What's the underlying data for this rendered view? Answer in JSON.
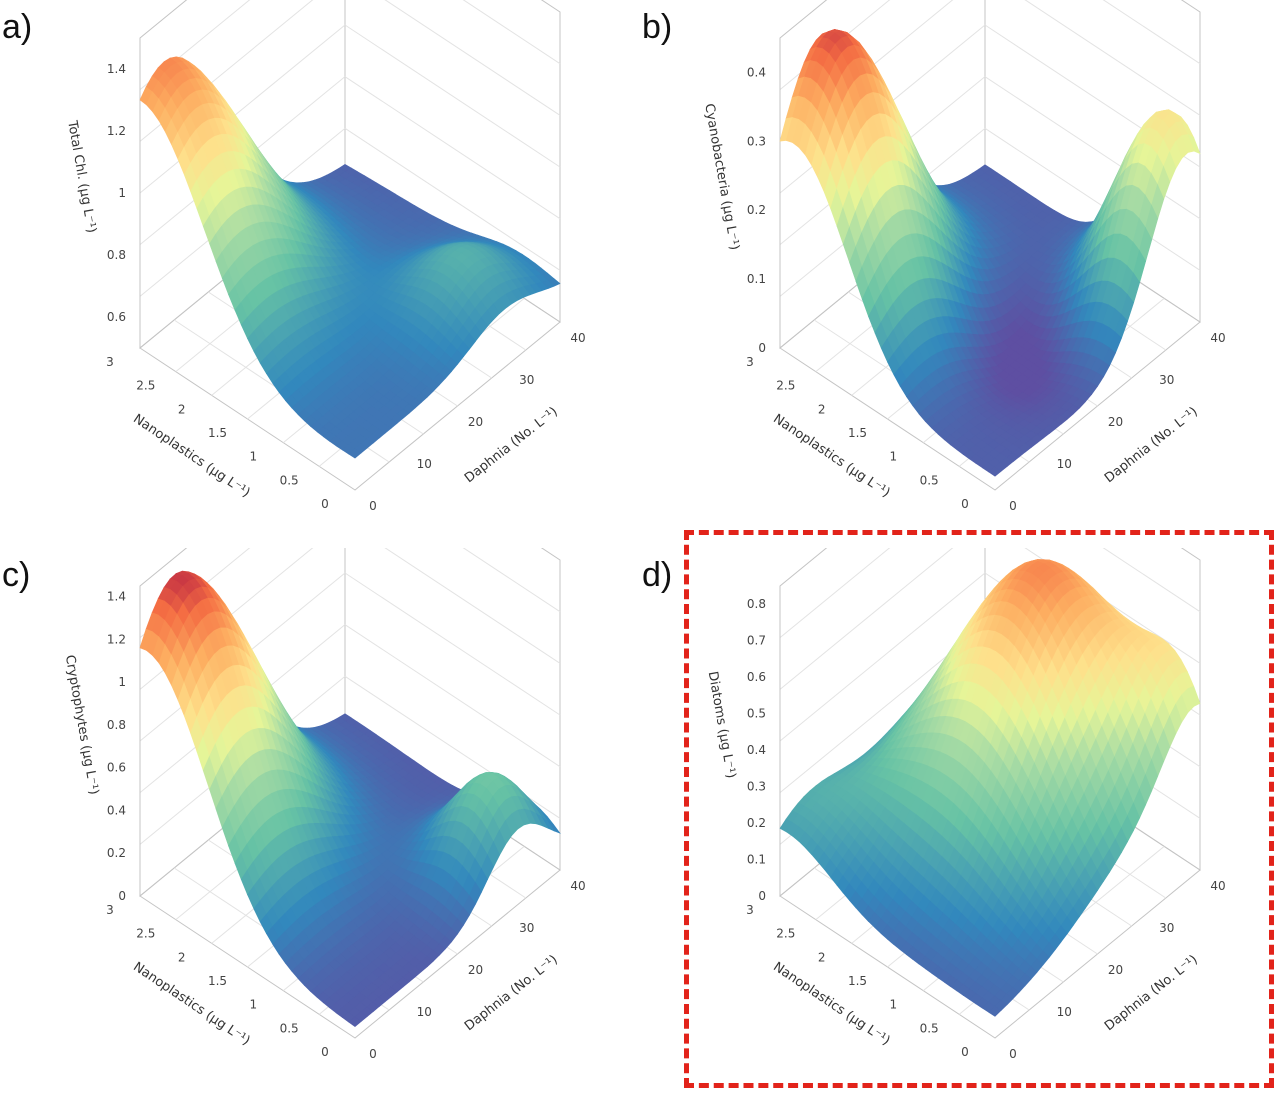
{
  "chart_data": [
    {
      "panel_label": "a)",
      "type": "surface",
      "zlabel": "Total Chl. (μg L⁻¹)",
      "xlabel": "Nanoplastics (μg L⁻¹)",
      "ylabel": "Daphnia (No. L⁻¹)",
      "x_ticks": [
        "0",
        "0.5",
        "1",
        "1.5",
        "2",
        "2.5",
        "3"
      ],
      "y_ticks": [
        "0",
        "10",
        "20",
        "30",
        "40"
      ],
      "z_ticks": [
        "0.6",
        "0.8",
        "1",
        "1.2",
        "1.4"
      ],
      "zlim": [
        0.5,
        1.5
      ],
      "peak": {
        "nanoplastics": 3,
        "daphnia": 5,
        "value": 1.42
      },
      "colorscale": "spectral"
    },
    {
      "panel_label": "b)",
      "type": "surface",
      "zlabel": "Cyanobacteria (μg L⁻¹)",
      "xlabel": "Nanoplastics (μg L⁻¹)",
      "ylabel": "Daphnia (No. L⁻¹)",
      "x_ticks": [
        "0",
        "0.5",
        "1",
        "1.5",
        "2",
        "2.5",
        "3"
      ],
      "y_ticks": [
        "0",
        "10",
        "20",
        "30",
        "40"
      ],
      "z_ticks": [
        "0",
        "0.1",
        "0.2",
        "0.3",
        "0.4"
      ],
      "zlim": [
        0,
        0.45
      ],
      "peak": {
        "nanoplastics": 3,
        "daphnia": 8,
        "value": 0.42
      },
      "colorscale": "spectral"
    },
    {
      "panel_label": "c)",
      "type": "surface",
      "zlabel": "Cryptophytes (μg L⁻¹)",
      "xlabel": "Nanoplastics (μg L⁻¹)",
      "ylabel": "Daphnia (No. L⁻¹)",
      "x_ticks": [
        "0",
        "0.5",
        "1",
        "1.5",
        "2",
        "2.5",
        "3"
      ],
      "y_ticks": [
        "0",
        "10",
        "20",
        "30",
        "40"
      ],
      "z_ticks": [
        "0",
        "0.2",
        "0.4",
        "0.6",
        "0.8",
        "1",
        "1.2",
        "1.4"
      ],
      "zlim": [
        0,
        1.45
      ],
      "peak": {
        "nanoplastics": 3,
        "daphnia": 5,
        "value": 1.38
      },
      "colorscale": "spectral"
    },
    {
      "panel_label": "d)",
      "type": "surface",
      "zlabel": "Diatoms (μg L⁻¹)",
      "xlabel": "Nanoplastics (μg L⁻¹)",
      "ylabel": "Daphnia (No. L⁻¹)",
      "x_ticks": [
        "0",
        "0.5",
        "1",
        "1.5",
        "2",
        "2.5",
        "3"
      ],
      "y_ticks": [
        "0",
        "10",
        "20",
        "30",
        "40"
      ],
      "z_ticks": [
        "0",
        "0.1",
        "0.2",
        "0.3",
        "0.4",
        "0.5",
        "0.6",
        "0.7",
        "0.8"
      ],
      "zlim": [
        0,
        0.85
      ],
      "peak": {
        "nanoplastics": 1.5,
        "daphnia": 30,
        "value": 0.76
      },
      "colorscale": "spectral",
      "highlighted": true,
      "highlight_color": "#e2231a"
    }
  ]
}
